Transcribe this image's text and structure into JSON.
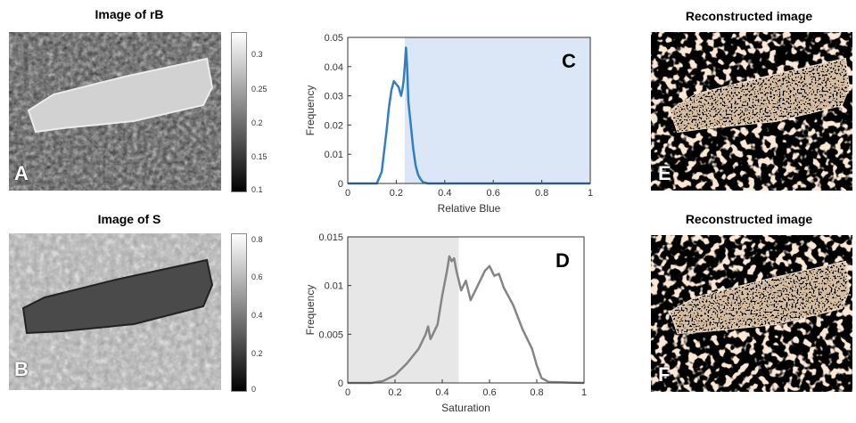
{
  "panels": {
    "A": {
      "title": "Image of rB",
      "letter": "A",
      "colorbar_ticks": [
        "0.3",
        "0.25",
        "0.2",
        "0.15",
        "0.1"
      ]
    },
    "B": {
      "title": "Image of S",
      "letter": "B",
      "colorbar_ticks": [
        "0.8",
        "0.6",
        "0.4",
        "0.2",
        "0"
      ]
    },
    "E": {
      "title": "Reconstructed image",
      "letter": "E"
    },
    "F": {
      "title": "Reconstructed image",
      "letter": "F"
    }
  },
  "chart_data": [
    {
      "panel_letter": "C",
      "type": "line",
      "xlabel": "Relative Blue",
      "ylabel": "Frequency",
      "xlim": [
        0,
        1
      ],
      "ylim": [
        0,
        0.05
      ],
      "x_ticks": [
        "0",
        "0.2",
        "0.4",
        "0.6",
        "0.8",
        "1"
      ],
      "y_ticks": [
        "0",
        "0.01",
        "0.02",
        "0.03",
        "0.04",
        "0.05"
      ],
      "shaded_range": [
        0.235,
        1.0
      ],
      "shade_color": "#dbe6f6",
      "line_color": "#2f7fc1",
      "x": [
        0.0,
        0.12,
        0.14,
        0.16,
        0.17,
        0.18,
        0.19,
        0.2,
        0.21,
        0.22,
        0.225,
        0.23,
        0.235,
        0.24,
        0.245,
        0.25,
        0.26,
        0.27,
        0.28,
        0.29,
        0.3,
        0.31,
        0.33,
        1.0
      ],
      "y": [
        0.0,
        0.0,
        0.004,
        0.018,
        0.026,
        0.032,
        0.035,
        0.034,
        0.033,
        0.03,
        0.032,
        0.035,
        0.04,
        0.0465,
        0.04,
        0.028,
        0.02,
        0.012,
        0.006,
        0.003,
        0.0015,
        0.0005,
        0.0,
        0.0
      ]
    },
    {
      "panel_letter": "D",
      "type": "line",
      "xlabel": "Saturation",
      "ylabel": "Frequency",
      "xlim": [
        0,
        1
      ],
      "ylim": [
        0,
        0.015
      ],
      "x_ticks": [
        "0",
        "0.2",
        "0.4",
        "0.6",
        "0.8",
        "1"
      ],
      "y_ticks": [
        "0",
        "0.005",
        "0.01",
        "0.015"
      ],
      "shaded_range": [
        0.0,
        0.47
      ],
      "shade_color": "#e7e7e7",
      "line_color": "#858585",
      "x": [
        0.0,
        0.1,
        0.15,
        0.2,
        0.25,
        0.3,
        0.33,
        0.34,
        0.35,
        0.38,
        0.4,
        0.42,
        0.43,
        0.44,
        0.45,
        0.46,
        0.47,
        0.48,
        0.5,
        0.52,
        0.55,
        0.58,
        0.6,
        0.62,
        0.64,
        0.66,
        0.7,
        0.74,
        0.78,
        0.8,
        0.82,
        0.85,
        1.0
      ],
      "y": [
        0.0,
        0.0,
        0.0002,
        0.0008,
        0.002,
        0.0035,
        0.005,
        0.0058,
        0.0045,
        0.006,
        0.009,
        0.0115,
        0.013,
        0.0125,
        0.0128,
        0.0115,
        0.0105,
        0.0095,
        0.0105,
        0.0085,
        0.01,
        0.0115,
        0.012,
        0.011,
        0.0112,
        0.0098,
        0.008,
        0.0055,
        0.0035,
        0.0018,
        0.0005,
        0.0001,
        0.0
      ]
    }
  ]
}
